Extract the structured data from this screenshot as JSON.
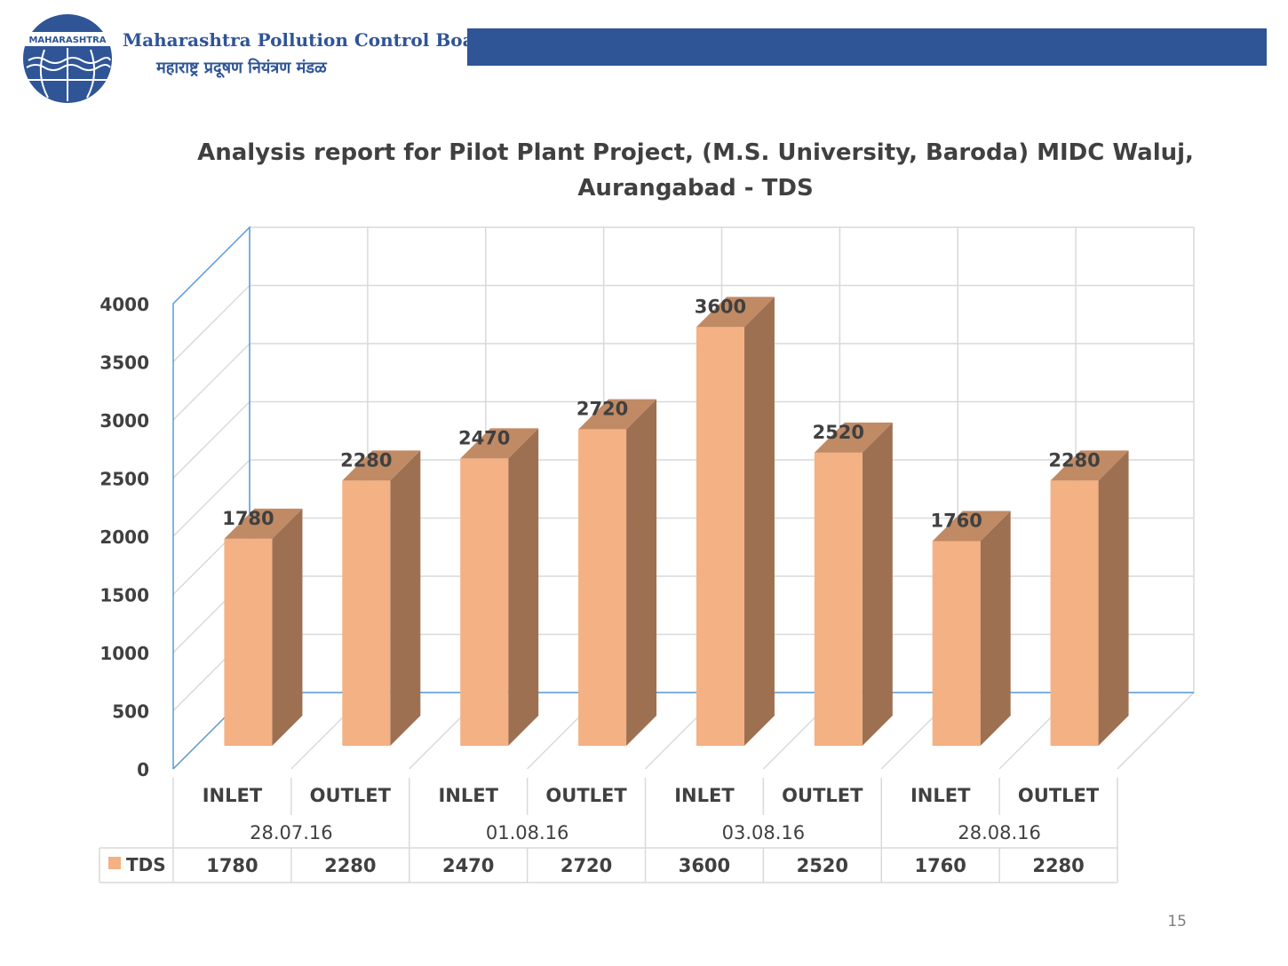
{
  "header": {
    "logo_text": "MAHARASHTRA",
    "org_name_en": "Maharashtra Pollution Control Board",
    "org_name_mr": "महाराष्ट्र प्रदूषण नियंत्रण मंडळ"
  },
  "colors": {
    "brand_blue": "#2f5597",
    "bar_front": "#f4b183",
    "bar_side": "#9e7052",
    "bar_top": "#c08a64",
    "wall_line": "#5b9bd5",
    "grid": "#d9d9d9"
  },
  "page_number": "15",
  "chart_data": {
    "type": "bar",
    "title": "Analysis report for Pilot Plant Project, (M.S. University, Baroda) MIDC Waluj, Aurangabad - TDS",
    "categories": [
      "INLET",
      "OUTLET",
      "INLET",
      "OUTLET",
      "INLET",
      "OUTLET",
      "INLET",
      "OUTLET"
    ],
    "groups": [
      "28.07.16",
      "01.08.16",
      "03.08.16",
      "28.08.16"
    ],
    "series": [
      {
        "name": "TDS",
        "values": [
          1780,
          2280,
          2470,
          2720,
          3600,
          2520,
          1760,
          2280
        ]
      }
    ],
    "ylim": [
      0,
      4000
    ],
    "yticks": [
      0,
      500,
      1000,
      1500,
      2000,
      2500,
      3000,
      3500,
      4000
    ],
    "grid": true,
    "style": "3d-column",
    "legend": "data-table"
  }
}
